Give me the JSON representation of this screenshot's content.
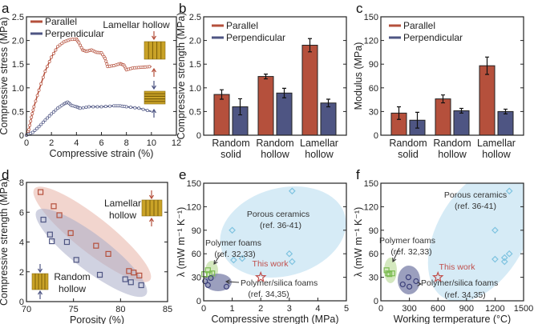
{
  "colors": {
    "parallel": "#b5503c",
    "perpendicular": "#4e5583",
    "ceramics": "#7ec3e0",
    "polymer": "#7cbc52",
    "silica": "#3b3f7a",
    "this_work": "#c0504d",
    "inset": "#c9a227"
  },
  "chart_data": [
    {
      "label": "a",
      "type": "line",
      "xlabel": "Compressive strain (%)",
      "ylabel": "Compressive stress (MPa)",
      "xlim": [
        0,
        12
      ],
      "ylim": [
        0,
        2.5
      ],
      "xticks": [
        "0",
        "2",
        "4",
        "6",
        "8",
        "10",
        "12"
      ],
      "yticks": [
        "0",
        "0.5",
        "1.0",
        "1.5",
        "2.0",
        "2.5"
      ],
      "legend": "top-left",
      "annotation": "Lamellar hollow",
      "series": [
        {
          "name": "Parallel",
          "color": "#b5503c",
          "points": [
            [
              0,
              0
            ],
            [
              0.2,
              0.12
            ],
            [
              0.4,
              0.38
            ],
            [
              0.6,
              0.6
            ],
            [
              1,
              0.95
            ],
            [
              1.5,
              1.35
            ],
            [
              2,
              1.65
            ],
            [
              2.5,
              1.87
            ],
            [
              3,
              1.97
            ],
            [
              3.5,
              2.02
            ],
            [
              4,
              2.03
            ],
            [
              4.2,
              1.95
            ],
            [
              4.5,
              1.8
            ],
            [
              4.8,
              1.77
            ],
            [
              5.2,
              1.8
            ],
            [
              5.6,
              1.75
            ],
            [
              6,
              1.74
            ],
            [
              6.3,
              1.62
            ],
            [
              6.5,
              1.45
            ],
            [
              7,
              1.47
            ],
            [
              7.5,
              1.51
            ],
            [
              7.8,
              1.48
            ],
            [
              8,
              1.38
            ],
            [
              8.5,
              1.42
            ],
            [
              9,
              1.43
            ],
            [
              9.5,
              1.44
            ],
            [
              10,
              1.45
            ]
          ]
        },
        {
          "name": "Perpendicular",
          "color": "#4e5583",
          "points": [
            [
              0,
              0
            ],
            [
              0.5,
              0.06
            ],
            [
              1,
              0.18
            ],
            [
              1.5,
              0.32
            ],
            [
              2,
              0.45
            ],
            [
              2.5,
              0.57
            ],
            [
              3,
              0.66
            ],
            [
              3.3,
              0.7
            ],
            [
              3.6,
              0.63
            ],
            [
              4,
              0.6
            ],
            [
              4.3,
              0.57
            ],
            [
              5,
              0.6
            ],
            [
              6,
              0.6
            ],
            [
              7,
              0.62
            ],
            [
              7.5,
              0.62
            ],
            [
              8,
              0.6
            ],
            [
              9,
              0.57
            ],
            [
              10,
              0.5
            ]
          ]
        }
      ]
    },
    {
      "label": "b",
      "type": "bar",
      "ylabel": "Compressive strength (MPa)",
      "ylim": [
        0,
        2.5
      ],
      "yticks": [
        "0",
        "0.5",
        "1.0",
        "1.5",
        "2.0",
        "2.5"
      ],
      "categories": [
        [
          "Random",
          "solid"
        ],
        [
          "Random",
          "hollow"
        ],
        [
          "Lamellar",
          "hollow"
        ]
      ],
      "legend": "top-left",
      "series": [
        {
          "name": "Parallel",
          "color": "#b5503c",
          "values": [
            0.86,
            1.24,
            1.9
          ],
          "errors": [
            0.1,
            0.05,
            0.14
          ]
        },
        {
          "name": "Perpendicular",
          "color": "#4e5583",
          "values": [
            0.6,
            0.89,
            0.68
          ],
          "errors": [
            0.17,
            0.1,
            0.08
          ]
        }
      ]
    },
    {
      "label": "c",
      "type": "bar",
      "ylabel": "Modulus (MPa)",
      "ylim": [
        0,
        150
      ],
      "yticks": [
        "0",
        "30",
        "60",
        "90",
        "120",
        "150"
      ],
      "categories": [
        [
          "Random",
          "solid"
        ],
        [
          "Random",
          "hollow"
        ],
        [
          "Lamellar",
          "hollow"
        ]
      ],
      "legend": "top-left",
      "series": [
        {
          "name": "Parallel",
          "color": "#b5503c",
          "values": [
            28,
            46,
            88
          ],
          "errors": [
            8,
            5,
            11
          ]
        },
        {
          "name": "Perpendicular",
          "color": "#4e5583",
          "values": [
            19,
            31,
            30
          ],
          "errors": [
            10,
            3,
            3
          ]
        }
      ]
    },
    {
      "label": "d",
      "type": "scatter",
      "xlabel": "Porosity (%)",
      "ylabel": "Compressive strength (MPa)",
      "xlim": [
        70,
        85
      ],
      "ylim": [
        0,
        8
      ],
      "xticks": [
        "70",
        "75",
        "80",
        "85"
      ],
      "yticks": [
        "0",
        "2",
        "4",
        "6",
        "8"
      ],
      "annotations": [
        [
          "Lamellar",
          "hollow"
        ],
        [
          "Random",
          "hollow"
        ]
      ],
      "series": [
        {
          "name": "Lamellar hollow",
          "color": "#b5503c",
          "points": [
            [
              71.5,
              7.35
            ],
            [
              72.9,
              6.4
            ],
            [
              73.5,
              5.8
            ],
            [
              74.7,
              4.6
            ],
            [
              77.4,
              3.75
            ],
            [
              78.7,
              3.2
            ],
            [
              80.9,
              2.05
            ],
            [
              81.4,
              1.95
            ],
            [
              82,
              1.75
            ]
          ]
        },
        {
          "name": "Random hollow",
          "color": "#4e5583",
          "points": [
            [
              71.8,
              5.5
            ],
            [
              72.5,
              4.5
            ],
            [
              72.7,
              4.05
            ],
            [
              74.3,
              4.0
            ],
            [
              75.3,
              2.8
            ],
            [
              77.8,
              1.8
            ],
            [
              80.5,
              1.5
            ],
            [
              81.1,
              1.3
            ],
            [
              82.2,
              1.1
            ]
          ]
        }
      ]
    },
    {
      "label": "e",
      "type": "scatter",
      "xlabel": "Compressive strength (MPa)",
      "ylabel": "λ (mW m⁻¹ K⁻¹)",
      "xlim": [
        0,
        5
      ],
      "ylim": [
        0,
        150
      ],
      "xticks": [
        "0",
        "1",
        "2",
        "3",
        "4",
        "5"
      ],
      "yticks": [
        "0",
        "30",
        "60",
        "90",
        "120",
        "150"
      ],
      "series": [
        {
          "name": "Porous ceramics",
          "ref": "(ref. 36-41)",
          "marker": "diamond",
          "color": "#7ec3e0",
          "points": [
            [
              1,
              90
            ],
            [
              1.05,
              52
            ],
            [
              1.35,
              54
            ],
            [
              3,
              60
            ],
            [
              3.1,
              50
            ],
            [
              3.1,
              140
            ]
          ]
        },
        {
          "name": "Polymer foams",
          "ref": "(ref. 32,33)",
          "marker": "square",
          "color": "#7cbc52",
          "points": [
            [
              0.02,
              34
            ],
            [
              0.15,
              39
            ],
            [
              0.2,
              34
            ],
            [
              0.3,
              35
            ]
          ]
        },
        {
          "name": "Polymer/silica foams",
          "ref": "(ref. 34,35)",
          "marker": "circle",
          "color": "#3b3f7a",
          "points": [
            [
              0.05,
              25
            ],
            [
              0.15,
              20
            ],
            [
              0.25,
              29
            ],
            [
              0.8,
              18
            ]
          ]
        },
        {
          "name": "This work",
          "marker": "star",
          "color": "#c0504d",
          "points": [
            [
              2,
              30
            ]
          ]
        }
      ]
    },
    {
      "label": "f",
      "type": "scatter",
      "xlabel": "Working termperature (°C)",
      "ylabel": "λ (mW m⁻¹ K⁻¹)",
      "xlim": [
        0,
        1500
      ],
      "ylim": [
        0,
        150
      ],
      "xticks": [
        "0",
        "300",
        "600",
        "900",
        "1200",
        "1500"
      ],
      "yticks": [
        "0",
        "30",
        "60",
        "90",
        "120",
        "150"
      ],
      "series": [
        {
          "name": "Porous ceramics",
          "ref": "(ref. 36-41)",
          "marker": "diamond",
          "color": "#7ec3e0",
          "points": [
            [
              1200,
              90
            ],
            [
              1200,
              53
            ],
            [
              1300,
              55
            ],
            [
              1300,
              50
            ],
            [
              1350,
              60
            ],
            [
              1350,
              140
            ]
          ]
        },
        {
          "name": "Polymer foams",
          "ref": "(ref. 32,33)",
          "marker": "square",
          "color": "#7cbc52",
          "points": [
            [
              60,
              39
            ],
            [
              75,
              35
            ],
            [
              90,
              34
            ],
            [
              120,
              35
            ]
          ]
        },
        {
          "name": "Polymer/silica foams",
          "ref": "(ref. 34,35)",
          "marker": "circle",
          "color": "#3b3f7a",
          "points": [
            [
              230,
              21
            ],
            [
              290,
              30
            ],
            [
              300,
              18
            ],
            [
              370,
              25
            ]
          ]
        },
        {
          "name": "This work",
          "marker": "star",
          "color": "#c0504d",
          "points": [
            [
              600,
              30
            ]
          ]
        }
      ]
    }
  ]
}
